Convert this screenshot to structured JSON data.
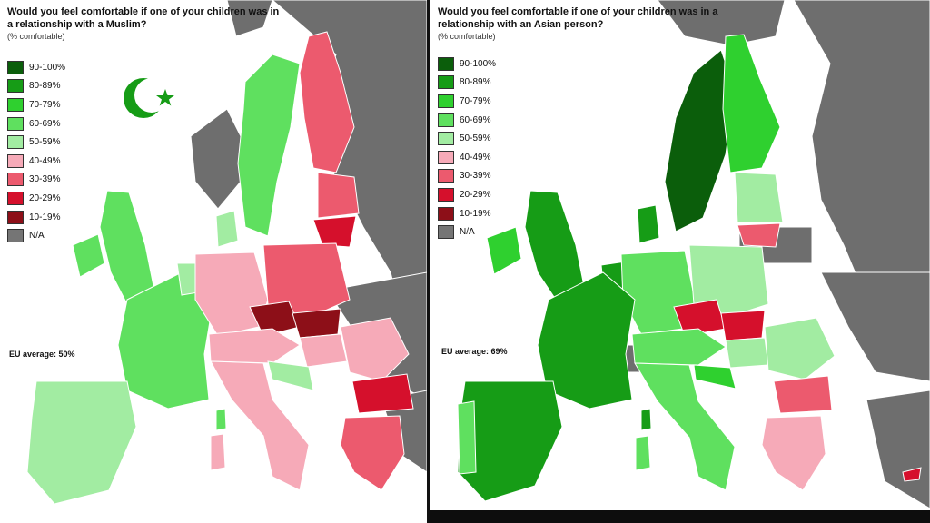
{
  "left_map": {
    "title": "Would you feel comfortable if one of your children was in a relationship with a Muslim?",
    "subtitle": "(% comfortable)",
    "eu_average": "EU average: 50%",
    "symbol_icon": "star-and-crescent"
  },
  "right_map": {
    "title": "Would you feel comfortable if one of your children was in a relationship with an Asian person?",
    "subtitle": "(% comfortable)",
    "eu_average": "EU average: 69%"
  },
  "legend": [
    {
      "label": "90-100%",
      "color": "#0b5e0b"
    },
    {
      "label": "80-89%",
      "color": "#169c16"
    },
    {
      "label": "70-79%",
      "color": "#2fd02f"
    },
    {
      "label": "60-69%",
      "color": "#5fe05f"
    },
    {
      "label": "50-59%",
      "color": "#a2eca2"
    },
    {
      "label": "40-49%",
      "color": "#f6aab8"
    },
    {
      "label": "30-39%",
      "color": "#ec5a6e"
    },
    {
      "label": "20-29%",
      "color": "#d5102c"
    },
    {
      "label": "10-19%",
      "color": "#8d0f18"
    },
    {
      "label": "N/A",
      "color": "#757575"
    }
  ],
  "colors": {
    "sea": "#ffffff",
    "non_data_land": "#6e6e6e",
    "border": "#ffffff"
  }
}
